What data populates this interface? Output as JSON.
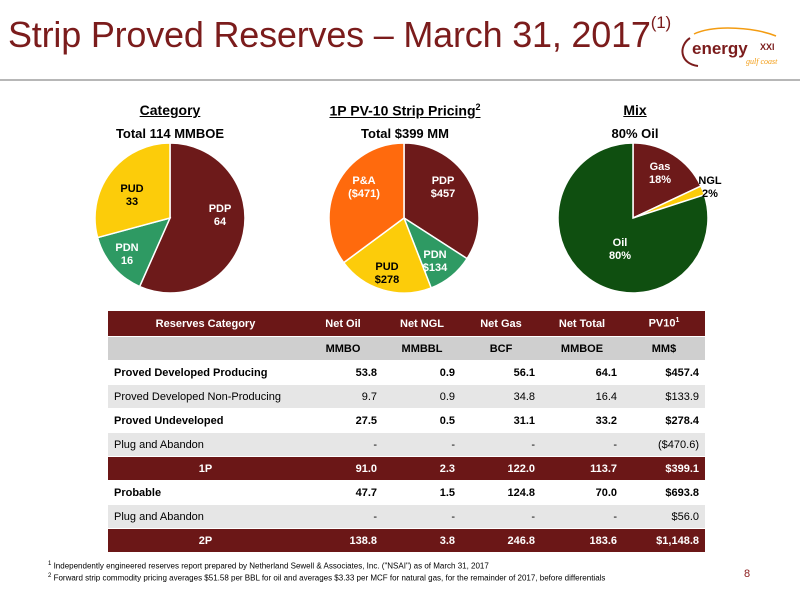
{
  "header": {
    "title": "Strip Proved Reserves – March 31, 2017",
    "title_sup": "(1)",
    "logo": {
      "word": "energy",
      "xxi": "XXI",
      "sub": "gulf coast",
      "colors": {
        "brown": "#7b1c1c",
        "orange": "#f39c12"
      }
    }
  },
  "charts_sections": {
    "category": {
      "heading": "Category",
      "subtitle": "Total 114 MMBOE"
    },
    "pricing": {
      "heading": "1P PV-10 Strip Pricing",
      "heading_sup": "2",
      "subtitle": "Total $399 MM"
    },
    "mix": {
      "heading": "Mix",
      "subtitle": "80% Oil"
    }
  },
  "chart_data": [
    {
      "type": "pie",
      "slices": [
        {
          "label": "PDP",
          "value_label": "64",
          "value": 64,
          "color": "#6d1a1a"
        },
        {
          "label": "PDN",
          "value_label": "16",
          "value": 16,
          "color": "#2e9a63"
        },
        {
          "label": "PUD",
          "value_label": "33",
          "value": 33,
          "color": "#fccc0a"
        }
      ]
    },
    {
      "type": "pie",
      "slices": [
        {
          "label": "PDP",
          "value_label": "$457",
          "value": 457,
          "color": "#6d1a1a"
        },
        {
          "label": "PDN",
          "value_label": "$134",
          "value": 134,
          "color": "#2e9a63"
        },
        {
          "label": "PUD",
          "value_label": "$278",
          "value": 278,
          "color": "#fccc0a"
        },
        {
          "label": "P&A",
          "value_label": "($471)",
          "value": 471,
          "color": "#ff6a0d"
        }
      ]
    },
    {
      "type": "pie",
      "slices": [
        {
          "label": "Gas",
          "value_label": "18%",
          "value": 18,
          "color": "#6d1a1a"
        },
        {
          "label": "NGL",
          "value_label": "2%",
          "value": 2,
          "color": "#fccc0a"
        },
        {
          "label": "Oil",
          "value_label": "80%",
          "value": 80,
          "color": "#0f4f10"
        }
      ]
    }
  ],
  "table": {
    "headers": [
      "Reserves Category",
      "Net Oil",
      "Net NGL",
      "Net Gas",
      "Net Total",
      "PV10"
    ],
    "pv10_sup": "1",
    "units": [
      "",
      "MMBO",
      "MMBBL",
      "BCF",
      "MMBOE",
      "MM$"
    ],
    "rows": [
      {
        "cells": [
          "Proved Developed Producing",
          "53.8",
          "0.9",
          "56.1",
          "64.1",
          "$457.4"
        ],
        "style": "row"
      },
      {
        "cells": [
          "Proved Developed Non-Producing",
          "9.7",
          "0.9",
          "34.8",
          "16.4",
          "$133.9"
        ],
        "style": "alt"
      },
      {
        "cells": [
          "Proved Undeveloped",
          "27.5",
          "0.5",
          "31.1",
          "33.2",
          "$278.4"
        ],
        "style": "row"
      },
      {
        "cells": [
          "Plug and Abandon",
          "-",
          "-",
          "-",
          "-",
          "($470.6)"
        ],
        "style": "alt"
      },
      {
        "cells": [
          "1P",
          "91.0",
          "2.3",
          "122.0",
          "113.7",
          "$399.1"
        ],
        "style": "tot"
      },
      {
        "cells": [
          "Probable",
          "47.7",
          "1.5",
          "124.8",
          "70.0",
          "$693.8"
        ],
        "style": "row"
      },
      {
        "cells": [
          "Plug and Abandon",
          "-",
          "-",
          "-",
          "-",
          "$56.0"
        ],
        "style": "alt"
      },
      {
        "cells": [
          "2P",
          "138.8",
          "3.8",
          "246.8",
          "183.6",
          "$1,148.8"
        ],
        "style": "tot"
      }
    ]
  },
  "footnotes": {
    "f1_mark": "1",
    "f1": "Independently engineered reserves report prepared by Netherland Sewell & Associates, Inc. (\"NSAI\") as of March 31, 2017",
    "f2_mark": "2",
    "f2": "Forward strip commodity pricing averages $51.58 per BBL for oil and averages $3.33 per MCF for natural gas, for the remainder of 2017, before differentials"
  },
  "page_number": "8"
}
